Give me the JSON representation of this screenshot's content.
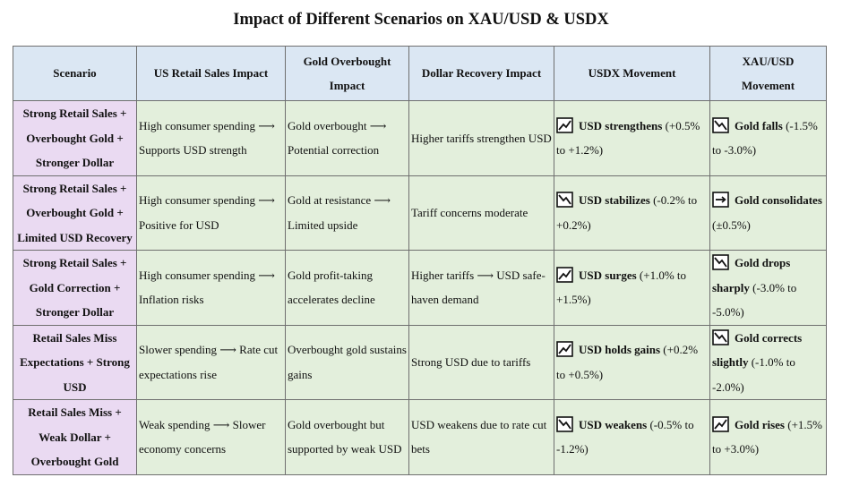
{
  "title": "Impact of Different Scenarios on XAU/USD & USDX",
  "headers": [
    "Scenario",
    "US Retail Sales Impact",
    "Gold Overbought Impact",
    "Dollar Recovery Impact",
    "USDX Movement",
    "XAU/USD Movement"
  ],
  "rows": [
    {
      "scenario": "Strong Retail Sales + Overbought Gold + Stronger Dollar",
      "retail": "High consumer spending ⟶ Supports USD strength",
      "gold": "Gold overbought ⟶ Potential correction",
      "dollar": "Higher tariffs strengthen USD",
      "usdx_icon": "chart-up-icon",
      "usdx_label": "USD strengthens",
      "usdx_range": " (+0.5% to +1.2%)",
      "xau_icon": "chart-down-icon",
      "xau_label": "Gold falls",
      "xau_range": " (-1.5% to -3.0%)"
    },
    {
      "scenario": "Strong Retail Sales + Overbought Gold + Limited USD Recovery",
      "retail": "High consumer spending ⟶ Positive for USD",
      "gold": "Gold at resistance ⟶ Limited upside",
      "dollar": "Tariff concerns moderate",
      "usdx_icon": "chart-down-icon",
      "usdx_label": "USD stabilizes",
      "usdx_range": " (-0.2% to +0.2%)",
      "xau_icon": "arrow-right-icon",
      "xau_label": "Gold consolidates",
      "xau_range": " (±0.5%)"
    },
    {
      "scenario": "Strong Retail Sales + Gold Correction + Stronger Dollar",
      "retail": "High consumer spending ⟶ Inflation risks",
      "gold": "Gold profit-taking accelerates decline",
      "dollar": "Higher tariffs ⟶ USD safe-haven demand",
      "usdx_icon": "chart-up-icon",
      "usdx_label": "USD surges",
      "usdx_range": " (+1.0% to +1.5%)",
      "xau_icon": "chart-down-icon",
      "xau_label": "Gold drops sharply",
      "xau_range": " (-3.0% to -5.0%)"
    },
    {
      "scenario": "Retail Sales Miss Expectations + Strong USD",
      "retail": "Slower spending ⟶ Rate cut expectations rise",
      "gold": "Overbought gold sustains gains",
      "dollar": "Strong USD due to tariffs",
      "usdx_icon": "chart-up-icon",
      "usdx_label": "USD holds gains",
      "usdx_range": " (+0.2% to +0.5%)",
      "xau_icon": "chart-down-icon",
      "xau_label": "Gold corrects slightly",
      "xau_range": " (-1.0% to -2.0%)"
    },
    {
      "scenario": "Retail Sales Miss + Weak Dollar + Overbought Gold",
      "retail": "Weak spending ⟶ Slower economy concerns",
      "gold": "Gold overbought but supported by weak USD",
      "dollar": "USD weakens due to rate cut bets",
      "usdx_icon": "chart-down-icon",
      "usdx_label": "USD weakens",
      "usdx_range": " (-0.5% to -1.2%)",
      "xau_icon": "chart-up-icon",
      "xau_label": "Gold rises",
      "xau_range": " (+1.5% to +3.0%)"
    }
  ]
}
